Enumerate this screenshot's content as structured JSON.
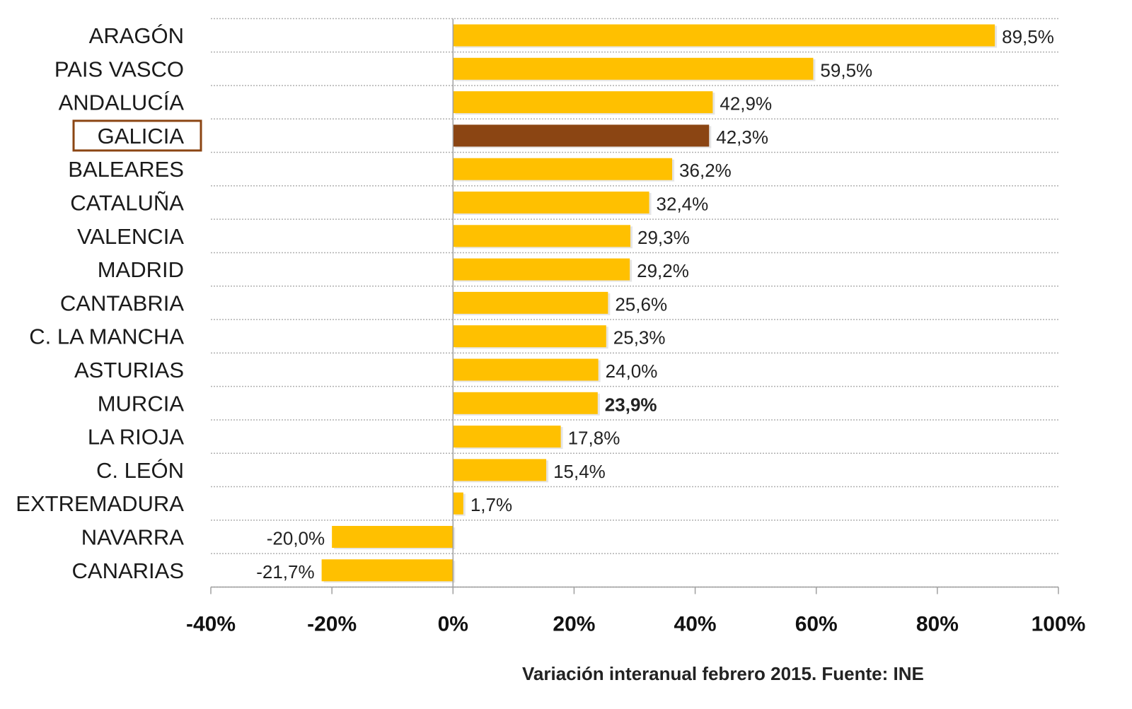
{
  "chart_data": {
    "type": "bar",
    "orientation": "horizontal",
    "categories": [
      "ARAGÓN",
      "PAIS VASCO",
      "ANDALUCÍA",
      "GALICIA",
      "BALEARES",
      "CATALUÑA",
      "VALENCIA",
      "MADRID",
      "CANTABRIA",
      "C. LA MANCHA",
      "ASTURIAS",
      "MURCIA",
      "LA RIOJA",
      "C. LEÓN",
      "EXTREMADURA",
      "NAVARRA",
      "CANARIAS"
    ],
    "values": [
      89.5,
      59.5,
      42.9,
      42.3,
      36.2,
      32.4,
      29.3,
      29.2,
      25.6,
      25.3,
      24.0,
      23.9,
      17.8,
      15.4,
      1.7,
      -20.0,
      -21.7
    ],
    "value_labels": [
      "89,5%",
      "59,5%",
      "42,9%",
      "42,3%",
      "36,2%",
      "32,4%",
      "29,3%",
      "29,2%",
      "25,6%",
      "25,3%",
      "24,0%",
      "23,9%",
      "17,8%",
      "15,4%",
      "1,7%",
      "-20,0%",
      "-21,7%"
    ],
    "highlight_category": "GALICIA",
    "bold_value_category": "MURCIA",
    "xlim": [
      -40,
      100
    ],
    "xticks": [
      -40,
      -20,
      0,
      20,
      40,
      60,
      80,
      100
    ],
    "xtick_labels": [
      "-40%",
      "-20%",
      "0%",
      "20%",
      "40%",
      "60%",
      "80%",
      "100%"
    ],
    "grid": true,
    "caption": "Variación interanual febrero 2015.  Fuente: INE",
    "colors": {
      "bar": "#FFC000",
      "highlight_bar": "#8B4513",
      "highlight_box": "#8B4513",
      "grid": "#b0b0b0",
      "axis": "#a0a0a0"
    }
  }
}
